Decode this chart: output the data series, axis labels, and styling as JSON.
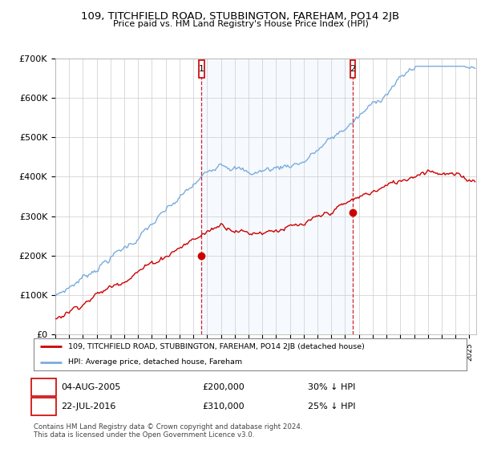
{
  "title": "109, TITCHFIELD ROAD, STUBBINGTON, FAREHAM, PO14 2JB",
  "subtitle": "Price paid vs. HM Land Registry's House Price Index (HPI)",
  "ylabel_ticks": [
    "£0",
    "£100K",
    "£200K",
    "£300K",
    "£400K",
    "£500K",
    "£600K",
    "£700K"
  ],
  "ylim": [
    0,
    700000
  ],
  "xlim_start": 1995.0,
  "xlim_end": 2025.5,
  "hpi_color": "#7aacdd",
  "price_color": "#cc0000",
  "sale1_year": 2005.59,
  "sale1_price": 200000,
  "sale2_year": 2016.55,
  "sale2_price": 310000,
  "legend_property": "109, TITCHFIELD ROAD, STUBBINGTON, FAREHAM, PO14 2JB (detached house)",
  "legend_hpi": "HPI: Average price, detached house, Fareham",
  "annotation1_label": "1",
  "annotation1_text": "04-AUG-2005",
  "annotation1_price": "£200,000",
  "annotation1_hpi": "30% ↓ HPI",
  "annotation2_label": "2",
  "annotation2_text": "22-JUL-2016",
  "annotation2_price": "£310,000",
  "annotation2_hpi": "25% ↓ HPI",
  "footer": "Contains HM Land Registry data © Crown copyright and database right 2024.\nThis data is licensed under the Open Government Licence v3.0.",
  "background_color": "#ffffff",
  "grid_color": "#cccccc",
  "shade_color": "#ddeeff"
}
